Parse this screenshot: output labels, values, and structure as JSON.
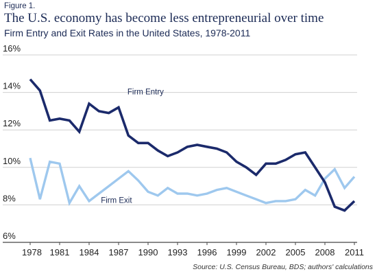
{
  "figure_label": "Figure 1.",
  "chart_data": {
    "type": "line",
    "title": "The U.S. economy has become less entrepreneurial over time",
    "subtitle": "Firm Entry and Exit Rates in the United States, 1978-2011",
    "source": "Source: U.S. Census Bureau, BDS; authors' calculations",
    "xlabel": "",
    "ylabel": "",
    "x": [
      1978,
      1979,
      1980,
      1981,
      1982,
      1983,
      1984,
      1985,
      1986,
      1987,
      1988,
      1989,
      1990,
      1991,
      1992,
      1993,
      1994,
      1995,
      1996,
      1997,
      1998,
      1999,
      2000,
      2001,
      2002,
      2003,
      2004,
      2005,
      2006,
      2007,
      2008,
      2009,
      2010,
      2011
    ],
    "xlim": [
      1978,
      2011
    ],
    "ylim": [
      6,
      16
    ],
    "x_ticks": [
      1978,
      1981,
      1984,
      1987,
      1990,
      1993,
      1996,
      1999,
      2002,
      2005,
      2008,
      2011
    ],
    "x_tick_labels": [
      "1978",
      "1981",
      "1984",
      "1987",
      "1990",
      "1993",
      "1996",
      "1999",
      "2002",
      "2005",
      "2008",
      "2011"
    ],
    "y_ticks": [
      6,
      8,
      10,
      12,
      14,
      16
    ],
    "y_tick_labels": [
      "6%",
      "8%",
      "10%",
      "12%",
      "14%",
      "16%"
    ],
    "grid": "horizontal",
    "legend": "none (series labeled inline)",
    "series": [
      {
        "name": "Firm Entry",
        "color": "#1b2a6b",
        "values": [
          14.7,
          14.1,
          12.5,
          12.6,
          12.5,
          11.9,
          13.4,
          13.0,
          12.9,
          13.2,
          11.7,
          11.3,
          11.3,
          10.9,
          10.6,
          10.8,
          11.1,
          11.2,
          11.1,
          11.0,
          10.8,
          10.3,
          10.0,
          9.6,
          10.2,
          10.2,
          10.4,
          10.7,
          10.8,
          10.0,
          9.2,
          7.9,
          7.7,
          8.2
        ]
      },
      {
        "name": "Firm Exit",
        "color": "#9ec8ee",
        "values": [
          10.5,
          8.3,
          10.3,
          10.2,
          8.1,
          9.0,
          8.2,
          8.6,
          9.0,
          9.4,
          9.8,
          9.3,
          8.7,
          8.5,
          8.9,
          8.6,
          8.6,
          8.5,
          8.6,
          8.8,
          8.9,
          8.7,
          8.5,
          8.3,
          8.1,
          8.2,
          8.2,
          8.3,
          8.8,
          8.5,
          9.4,
          9.9,
          8.9,
          9.5
        ]
      }
    ]
  }
}
